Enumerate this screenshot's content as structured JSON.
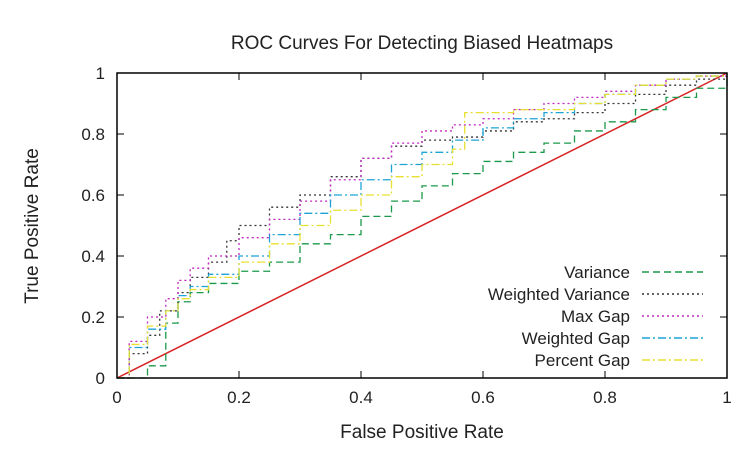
{
  "chart_data": {
    "type": "line",
    "title": "ROC Curves For Detecting Biased Heatmaps",
    "xlabel": "False Positive Rate",
    "ylabel": "True Positive Rate",
    "xlim": [
      0,
      1
    ],
    "ylim": [
      0,
      1
    ],
    "xticks": [
      0,
      0.2,
      0.4,
      0.6,
      0.8,
      1
    ],
    "yticks": [
      0,
      0.2,
      0.4,
      0.6,
      0.8,
      1
    ],
    "xtick_labels": [
      "0",
      "0.2",
      "0.4",
      "0.6",
      "0.8",
      "1"
    ],
    "ytick_labels": [
      "0",
      "0.2",
      "0.4",
      "0.6",
      "0.8",
      "1"
    ],
    "grid": false,
    "legend_position": "bottom-right",
    "reference_line": {
      "x": [
        0,
        1
      ],
      "y": [
        0,
        1
      ],
      "color": "#d62728"
    },
    "series": [
      {
        "name": "Variance",
        "color": "#1a9a4a",
        "dash": "dashed",
        "x": [
          0,
          0.05,
          0.08,
          0.08,
          0.1,
          0.12,
          0.15,
          0.2,
          0.25,
          0.3,
          0.35,
          0.4,
          0.45,
          0.5,
          0.55,
          0.6,
          0.65,
          0.7,
          0.75,
          0.8,
          0.85,
          0.9,
          0.95,
          1
        ],
        "y": [
          0,
          0.04,
          0.08,
          0.18,
          0.25,
          0.28,
          0.31,
          0.35,
          0.38,
          0.44,
          0.47,
          0.53,
          0.58,
          0.63,
          0.67,
          0.71,
          0.74,
          0.77,
          0.81,
          0.84,
          0.88,
          0.92,
          0.95,
          1
        ]
      },
      {
        "name": "Weighted Variance",
        "color": "#333333",
        "dash": "dotted",
        "x": [
          0,
          0.02,
          0.05,
          0.07,
          0.1,
          0.12,
          0.15,
          0.18,
          0.2,
          0.25,
          0.3,
          0.35,
          0.4,
          0.45,
          0.5,
          0.55,
          0.6,
          0.65,
          0.7,
          0.75,
          0.8,
          0.85,
          0.9,
          0.95,
          1
        ],
        "y": [
          0,
          0.08,
          0.14,
          0.22,
          0.28,
          0.33,
          0.38,
          0.45,
          0.5,
          0.56,
          0.6,
          0.66,
          0.72,
          0.76,
          0.78,
          0.79,
          0.81,
          0.84,
          0.85,
          0.87,
          0.9,
          0.93,
          0.96,
          0.98,
          1
        ]
      },
      {
        "name": "Max Gap",
        "color": "#c026c0",
        "dash": "dotted",
        "x": [
          0,
          0.02,
          0.05,
          0.08,
          0.1,
          0.12,
          0.15,
          0.2,
          0.25,
          0.3,
          0.35,
          0.4,
          0.45,
          0.5,
          0.55,
          0.6,
          0.65,
          0.7,
          0.75,
          0.8,
          0.85,
          0.9,
          0.95,
          1
        ],
        "y": [
          0,
          0.12,
          0.2,
          0.26,
          0.32,
          0.36,
          0.4,
          0.46,
          0.52,
          0.58,
          0.65,
          0.72,
          0.77,
          0.81,
          0.83,
          0.85,
          0.88,
          0.9,
          0.92,
          0.94,
          0.96,
          0.98,
          0.99,
          1
        ]
      },
      {
        "name": "Weighted Gap",
        "color": "#1ca3d8",
        "dash": "dashdot",
        "x": [
          0,
          0.02,
          0.05,
          0.08,
          0.1,
          0.12,
          0.15,
          0.2,
          0.25,
          0.3,
          0.35,
          0.4,
          0.45,
          0.5,
          0.55,
          0.6,
          0.65,
          0.7,
          0.75,
          0.8,
          0.85,
          0.9,
          0.95,
          1
        ],
        "y": [
          0,
          0.1,
          0.16,
          0.22,
          0.27,
          0.3,
          0.34,
          0.4,
          0.47,
          0.54,
          0.6,
          0.65,
          0.7,
          0.74,
          0.78,
          0.82,
          0.85,
          0.87,
          0.9,
          0.93,
          0.96,
          0.98,
          0.99,
          1
        ]
      },
      {
        "name": "Percent Gap",
        "color": "#e8e030",
        "dash": "dashdot",
        "x": [
          0,
          0.02,
          0.05,
          0.08,
          0.1,
          0.12,
          0.15,
          0.2,
          0.25,
          0.3,
          0.35,
          0.4,
          0.45,
          0.5,
          0.55,
          0.57,
          0.6,
          0.65,
          0.7,
          0.75,
          0.8,
          0.85,
          0.9,
          0.95,
          1
        ],
        "y": [
          0,
          0.11,
          0.17,
          0.22,
          0.26,
          0.29,
          0.33,
          0.38,
          0.44,
          0.5,
          0.55,
          0.6,
          0.66,
          0.7,
          0.75,
          0.87,
          0.87,
          0.88,
          0.88,
          0.9,
          0.93,
          0.96,
          0.98,
          0.99,
          1
        ]
      }
    ]
  }
}
